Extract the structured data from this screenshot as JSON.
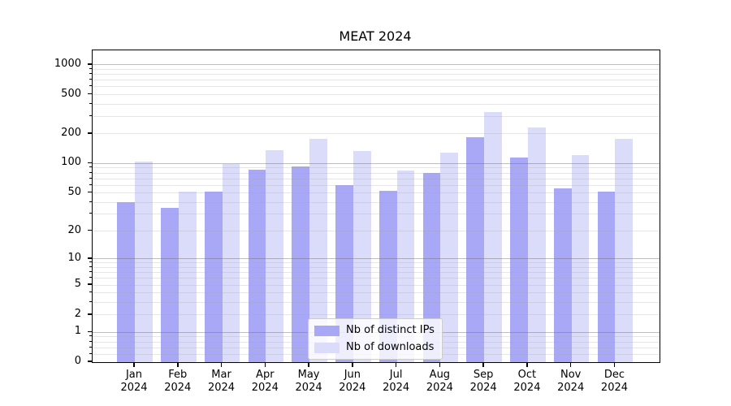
{
  "title": "MEAT 2024",
  "legend": {
    "items": [
      {
        "label": "Nb of distinct IPs",
        "color": "#a8a8f6"
      },
      {
        "label": "Nb of downloads",
        "color": "#dbdbfa"
      }
    ]
  },
  "chart_data": {
    "type": "bar",
    "title": "MEAT 2024",
    "categories": [
      "Jan 2024",
      "Feb 2024",
      "Mar 2024",
      "Apr 2024",
      "May 2024",
      "Jun 2024",
      "Jul 2024",
      "Aug 2024",
      "Sep 2024",
      "Oct 2024",
      "Nov 2024",
      "Dec 2024"
    ],
    "x_tick_line1": [
      "Jan",
      "Feb",
      "Mar",
      "Apr",
      "May",
      "Jun",
      "Jul",
      "Aug",
      "Sep",
      "Oct",
      "Nov",
      "Dec"
    ],
    "x_tick_line2": "2024",
    "series": [
      {
        "name": "Nb of distinct IPs",
        "color": "#a8a8f6",
        "values": [
          40,
          35,
          52,
          86,
          94,
          60,
          53,
          80,
          185,
          115,
          56,
          52
        ]
      },
      {
        "name": "Nb of downloads",
        "color": "#dbdbfa",
        "values": [
          104,
          52,
          98,
          136,
          178,
          135,
          85,
          130,
          330,
          232,
          123,
          177
        ]
      }
    ],
    "yscale": "log1p",
    "yticks": [
      0,
      1,
      2,
      5,
      10,
      20,
      50,
      100,
      200,
      500,
      1000
    ],
    "ylim": [
      0,
      1400
    ],
    "xlabel": "",
    "ylabel": "",
    "grid": true,
    "legend_position": "lower center"
  },
  "colors": {
    "background": "#ffffff",
    "axis": "#000000",
    "grid_major": "rgba(110,110,110,0.45)",
    "grid_minor": "rgba(165,165,165,0.28)",
    "legend_border": "#cccccc"
  }
}
